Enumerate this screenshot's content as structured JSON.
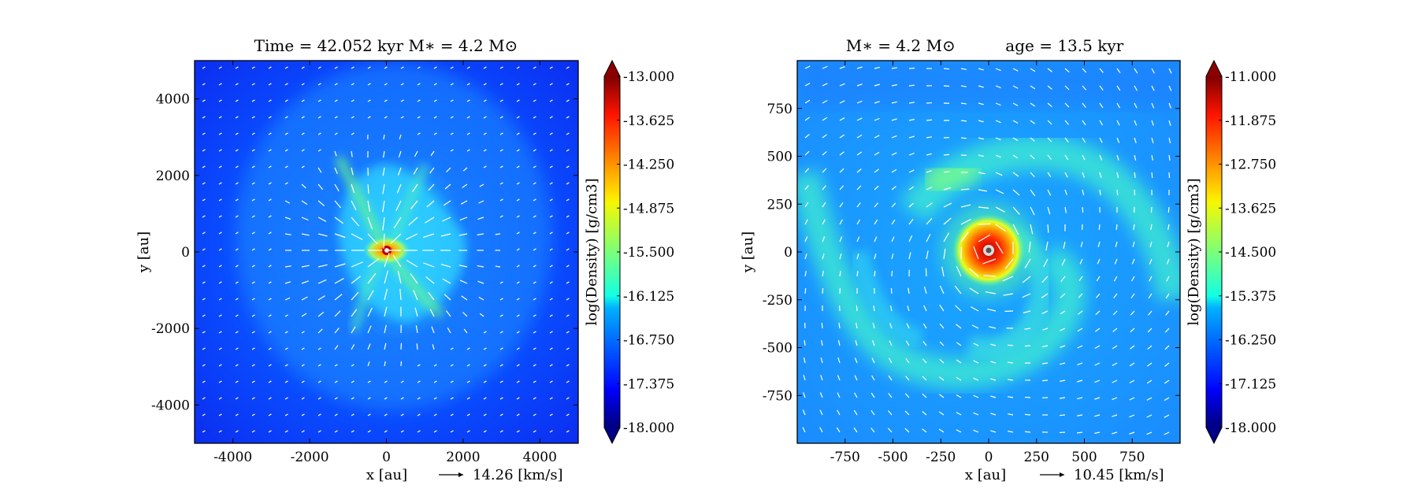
{
  "chart_data": [
    {
      "type": "heatmap",
      "title": "Time = 42.052 kyr    M∗ = 4.2 M⊙",
      "xlabel": "x [au]",
      "ylabel": "y [au]",
      "xlim": [
        -5000,
        5000
      ],
      "ylim": [
        -5000,
        5000
      ],
      "xticks": [
        -4000,
        -2000,
        0,
        2000,
        4000
      ],
      "xtick_labels": [
        "-4000",
        "-2000",
        "0",
        "2000",
        "4000"
      ],
      "yticks": [
        4000,
        2000,
        0,
        -2000,
        -4000
      ],
      "ytick_labels": [
        "4000",
        "2000",
        "0",
        "-2000",
        "-4000"
      ],
      "velocity_key_label": "14.26 [km/s]",
      "colorbar": {
        "label": "log(Density) [g/cm3]",
        "min": -18.0,
        "max": -13.0,
        "ticks": [
          "-13.000",
          "-13.625",
          "-14.250",
          "-14.875",
          "-15.500",
          "-16.125",
          "-16.750",
          "-17.375",
          "-18.000"
        ],
        "colormap": "jet"
      }
    },
    {
      "type": "heatmap",
      "title": "M∗ = 4.2 M⊙          age = 13.5 kyr",
      "xlabel": "x [au]",
      "ylabel": "y [au]",
      "xlim": [
        -1000,
        1000
      ],
      "ylim": [
        -1000,
        1000
      ],
      "xticks": [
        -750,
        -500,
        -250,
        0,
        250,
        500,
        750
      ],
      "xtick_labels": [
        "-750",
        "-500",
        "-250",
        "0",
        "250",
        "500",
        "750"
      ],
      "yticks": [
        750,
        500,
        250,
        0,
        -250,
        -500,
        -750
      ],
      "ytick_labels": [
        "750",
        "500",
        "250",
        "0",
        "-250",
        "-500",
        "-750"
      ],
      "velocity_key_label": "10.45 [km/s]",
      "colorbar": {
        "label": "log(Density) [g/cm3]",
        "min": -18.0,
        "max": -11.0,
        "ticks": [
          "-11.000",
          "-11.875",
          "-12.750",
          "-13.625",
          "-14.500",
          "-15.375",
          "-16.250",
          "-17.125",
          "-18.000"
        ],
        "colormap": "jet"
      }
    }
  ]
}
